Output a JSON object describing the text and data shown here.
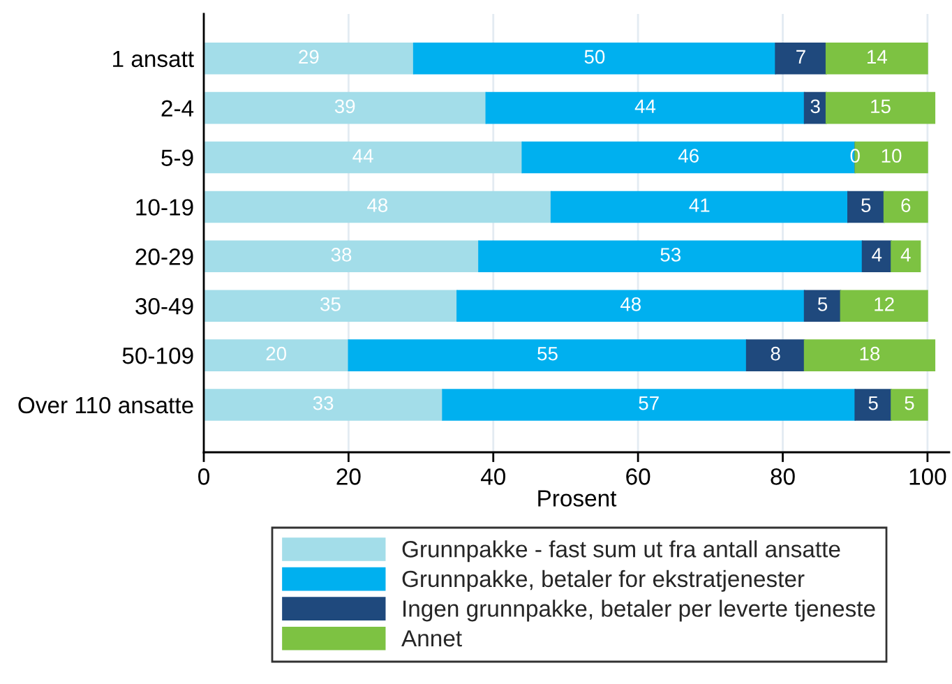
{
  "chart_data": {
    "type": "bar",
    "orientation": "horizontal",
    "stacked": true,
    "categories": [
      "1 ansatt",
      "2-4",
      "5-9",
      "10-19",
      "20-29",
      "30-49",
      "50-109",
      "Over 110 ansatte"
    ],
    "series": [
      {
        "name": "Grunnpakke - fast sum ut fra antall ansatte",
        "color": "#a3dde9",
        "values": [
          29,
          39,
          44,
          48,
          38,
          35,
          20,
          33
        ]
      },
      {
        "name": "Grunnpakke, betaler for ekstratjenester",
        "color": "#00b0ef",
        "values": [
          50,
          44,
          46,
          41,
          53,
          48,
          55,
          57
        ]
      },
      {
        "name": "Ingen grunnpakke, betaler per leverte tjeneste",
        "color": "#1f497d",
        "values": [
          7,
          3,
          0,
          5,
          4,
          5,
          8,
          5
        ]
      },
      {
        "name": "Annet",
        "color": "#7dc242",
        "values": [
          14,
          15,
          10,
          6,
          4,
          12,
          18,
          5
        ]
      }
    ],
    "xlim": [
      0,
      103
    ],
    "xticks": [
      0,
      20,
      40,
      60,
      80,
      100
    ],
    "xlabel": "Prosent",
    "grid": "x",
    "legend": "bottom",
    "data_labels": true
  }
}
